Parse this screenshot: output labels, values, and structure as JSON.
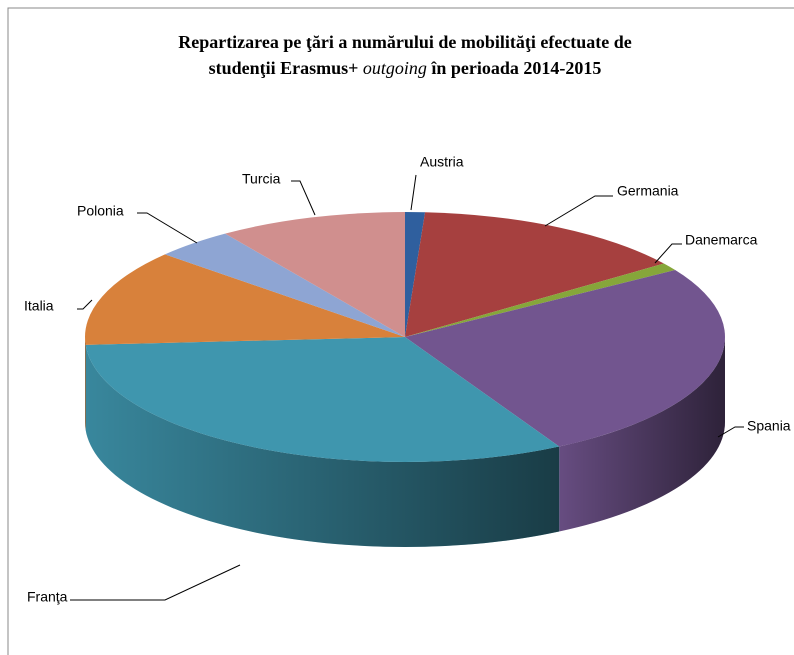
{
  "chart_data": {
    "type": "pie3d",
    "title": [
      "Repartizarea pe ţări a numărului de mobilităţi  efectuate de",
      "studenţii Erasmus+ ",
      "outgoing",
      " în perioada 2014-2015"
    ],
    "categories": [
      "Austria",
      "Germania",
      "Danemarca",
      "Spania",
      "Franţa",
      "Italia",
      "Polonia",
      "Turcia"
    ],
    "values": [
      1,
      14,
      1,
      26,
      32,
      12.5,
      4,
      9.5
    ],
    "colors": [
      "#2f5f9e",
      "#a6403f",
      "#86a63a",
      "#72558f",
      "#3f96ae",
      "#d8813b",
      "#8ea5d3",
      "#d08f8e"
    ]
  }
}
